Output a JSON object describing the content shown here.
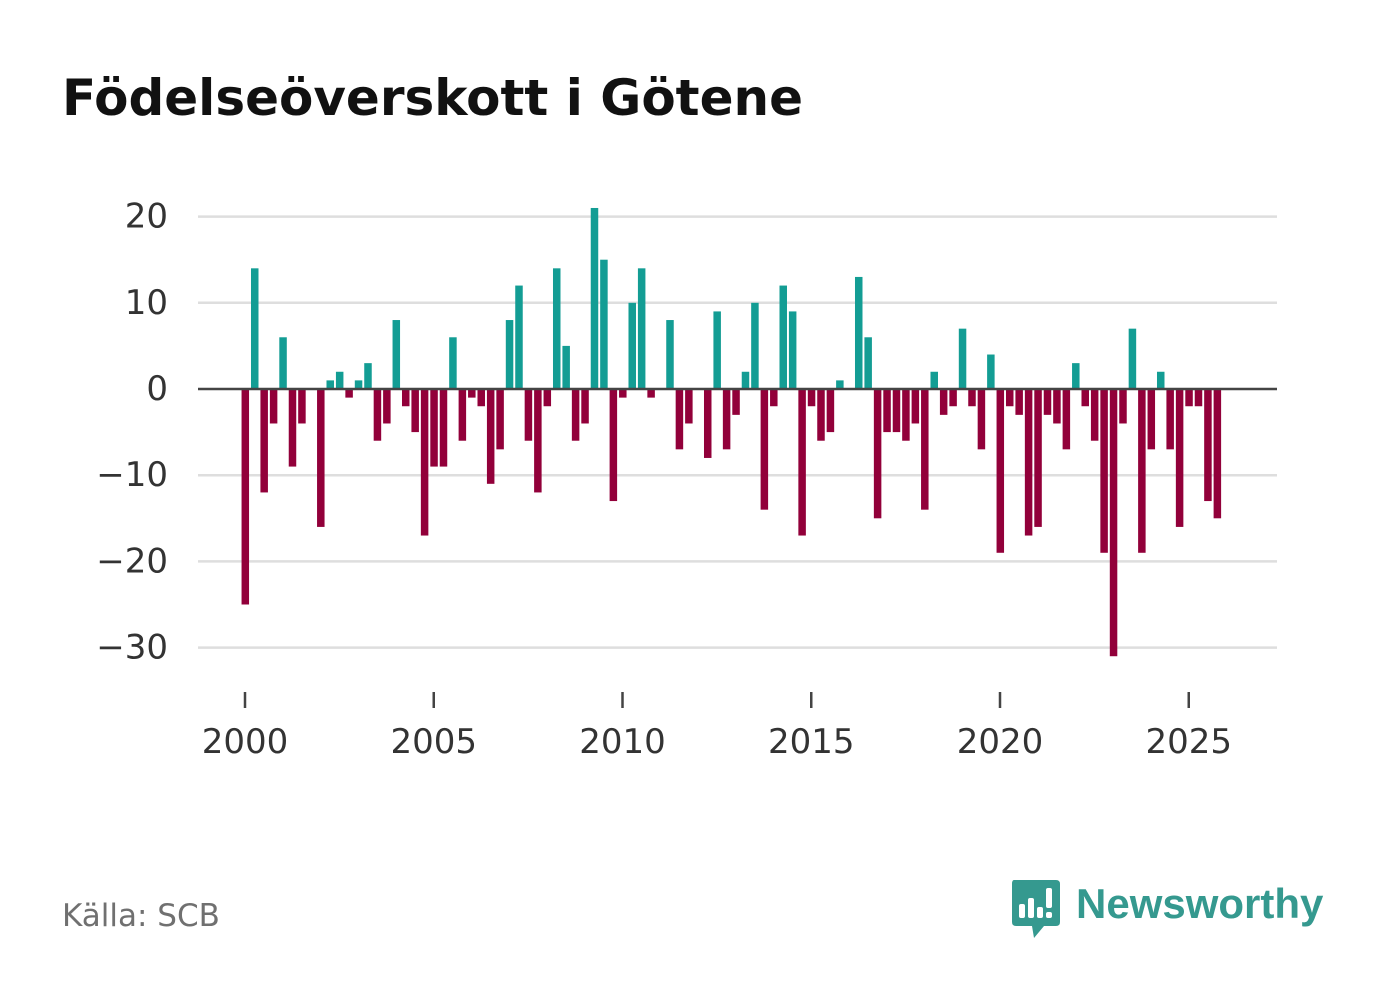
{
  "title": "Födelseöverskott i Götene",
  "source": "Källa: SCB",
  "brand": {
    "name": "Newsworthy",
    "icon": "bar-chart-speech-bubble-icon"
  },
  "colors": {
    "positive": "#139d94",
    "negative": "#92003a",
    "grid": "#dedede",
    "zero_line": "#444444",
    "brand": "#35998f",
    "text": "#333333"
  },
  "chart_data": {
    "type": "bar",
    "title": "Födelseöverskott i Götene",
    "xlabel": "",
    "ylabel": "",
    "ylim": [
      -33,
      22
    ],
    "xlim": [
      2000,
      2027
    ],
    "yticks": [
      20,
      10,
      0,
      -10,
      -20,
      -30
    ],
    "ytick_labels": [
      "20",
      "10",
      "0",
      "−10",
      "−20",
      "−30"
    ],
    "xticks": [
      2000,
      2005,
      2010,
      2015,
      2020,
      2025
    ],
    "xtick_labels": [
      "2000",
      "2005",
      "2010",
      "2015",
      "2020",
      "2025"
    ],
    "grid": true,
    "legend": "none",
    "x_start": 2000.0,
    "x_step": 0.25,
    "series": [
      {
        "name": "Födelseöverskott",
        "values": [
          -25,
          14,
          -12,
          -4,
          6,
          -9,
          -4,
          0,
          -16,
          1,
          2,
          -1,
          1,
          3,
          -6,
          -4,
          8,
          -2,
          -5,
          -17,
          -9,
          -9,
          6,
          -6,
          -1,
          -2,
          -11,
          -7,
          8,
          12,
          -6,
          -12,
          -2,
          14,
          5,
          -6,
          -4,
          21,
          15,
          -13,
          -1,
          10,
          14,
          -1,
          0,
          8,
          -7,
          -4,
          0,
          -8,
          9,
          -7,
          -3,
          2,
          10,
          -14,
          -2,
          12,
          9,
          -17,
          -2,
          -6,
          -5,
          1,
          0,
          13,
          6,
          -15,
          -5,
          -5,
          -6,
          -4,
          -14,
          2,
          -3,
          -2,
          7,
          -2,
          -7,
          4,
          -19,
          -2,
          -3,
          -17,
          -16,
          -3,
          -4,
          -7,
          3,
          -2,
          -6,
          -19,
          -31,
          -4,
          7,
          -19,
          -7,
          2,
          -7,
          -16,
          -2,
          -2,
          -13,
          -15
        ]
      }
    ]
  }
}
